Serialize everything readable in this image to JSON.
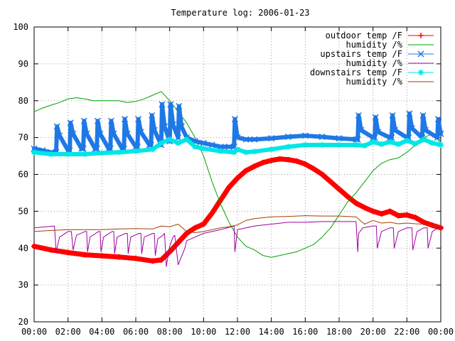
{
  "chart_data": {
    "type": "line",
    "title": "Temperature log: 2006-01-23",
    "xlabel": "",
    "ylabel": "",
    "x_ticks": [
      "00:00",
      "02:00",
      "04:00",
      "06:00",
      "08:00",
      "10:00",
      "12:00",
      "14:00",
      "16:00",
      "18:00",
      "20:00",
      "22:00",
      "00:00"
    ],
    "xlim": [
      0,
      24
    ],
    "ylim": [
      20,
      100
    ],
    "y_ticks": [
      "20",
      "30",
      "40",
      "50",
      "60",
      "70",
      "80",
      "90",
      "100"
    ],
    "grid": true,
    "legend_position": "top-right",
    "series": [
      {
        "name": "outdoor temp /F",
        "color": "#ff0000",
        "marker": "plus",
        "x": [
          0,
          1,
          2,
          3,
          4,
          5,
          6,
          7,
          7.5,
          8,
          8.5,
          9,
          9.5,
          10,
          10.5,
          11,
          11.5,
          12,
          12.5,
          13,
          13.5,
          14,
          14.5,
          15,
          15.5,
          16,
          16.5,
          17,
          17.5,
          18,
          18.5,
          19,
          19.5,
          20,
          20.5,
          21,
          21.5,
          22,
          22.5,
          23,
          23.5,
          24
        ],
        "y": [
          40.5,
          39.5,
          38.8,
          38.2,
          37.9,
          37.6,
          37.2,
          36.5,
          36.8,
          39,
          41.5,
          44,
          45.5,
          46.5,
          49.5,
          53,
          56.5,
          59,
          61,
          62.2,
          63.2,
          63.8,
          64.2,
          64,
          63.6,
          62.8,
          61.5,
          60,
          58,
          56,
          54,
          52.2,
          51,
          50,
          49.3,
          50,
          48.8,
          49,
          48.3,
          47,
          46.2,
          45.5
        ]
      },
      {
        "name": "humidity /%",
        "color": "#00a000",
        "marker": "none",
        "x": [
          0,
          0.5,
          1,
          1.5,
          2,
          2.5,
          3,
          3.5,
          4,
          4.5,
          5,
          5.5,
          6,
          6.5,
          7,
          7.5,
          8,
          8.5,
          9,
          9.5,
          10,
          10.5,
          11,
          11.5,
          12,
          12.5,
          13,
          13.5,
          14,
          14.5,
          15,
          15.5,
          16,
          16.5,
          17,
          17.5,
          18,
          18.5,
          19,
          19.5,
          20,
          20.5,
          21,
          21.5,
          22,
          22.5,
          23,
          23.5,
          24
        ],
        "y": [
          77,
          78,
          78.8,
          79.5,
          80.5,
          80.8,
          80.5,
          80,
          80,
          80,
          80,
          79.5,
          79.8,
          80.5,
          81.5,
          82.5,
          80,
          77,
          74,
          70,
          65,
          58,
          52,
          47,
          43,
          40.5,
          39.5,
          38,
          37.5,
          38,
          38.5,
          39,
          40,
          41,
          43,
          45.5,
          49,
          52.5,
          55,
          58,
          61,
          63,
          64,
          64.5,
          66,
          68,
          70,
          71,
          68.5
        ]
      },
      {
        "name": "upstairs temp /F",
        "color": "#1e78e6",
        "marker": "x",
        "x": [
          0,
          0.5,
          1,
          1.3,
          1.35,
          1.5,
          2,
          2.1,
          2.15,
          2.3,
          2.8,
          2.9,
          2.95,
          3.1,
          3.6,
          3.7,
          3.75,
          3.9,
          4.4,
          4.5,
          4.55,
          4.7,
          5.2,
          5.3,
          5.35,
          5.5,
          6,
          6.1,
          6.15,
          6.3,
          6.8,
          6.9,
          6.95,
          7.1,
          7.5,
          7.55,
          7.7,
          8,
          8.05,
          8.2,
          8.5,
          8.55,
          8.7,
          9,
          9.5,
          10,
          10.5,
          11,
          11.5,
          11.8,
          11.85,
          12,
          12.5,
          13,
          14,
          15,
          16,
          17,
          18,
          19,
          19.1,
          19.15,
          19.3,
          20,
          20.1,
          20.15,
          20.3,
          21,
          21.1,
          21.15,
          21.3,
          22,
          22.1,
          22.15,
          22.3,
          22.9,
          22.95,
          23.1,
          23.8,
          23.85,
          24
        ],
        "y": [
          67,
          66.5,
          66,
          66,
          73,
          70.5,
          66.5,
          66.5,
          74,
          71,
          67,
          67,
          74.5,
          71,
          67,
          67,
          74.5,
          71,
          67,
          67,
          74.5,
          71,
          67,
          67,
          75,
          71,
          67.5,
          67.5,
          75,
          71.5,
          68,
          68,
          76,
          72,
          68,
          79,
          73,
          69,
          79,
          73.5,
          70,
          78.5,
          73,
          70,
          69,
          68.5,
          68,
          67.5,
          67.5,
          67.5,
          75,
          70,
          69.5,
          69.5,
          69.8,
          70.2,
          70.5,
          70.2,
          69.8,
          69.5,
          69.5,
          76,
          72,
          70,
          70,
          75.5,
          71.5,
          70,
          70,
          76,
          72,
          70,
          70,
          76.5,
          72.5,
          70,
          76,
          72,
          70,
          75,
          71
        ]
      },
      {
        "name": "humidity /%",
        "color": "#a000a0",
        "marker": "none",
        "x": [
          0,
          1.2,
          1.3,
          1.5,
          2,
          2.2,
          2.3,
          2.5,
          3,
          3.1,
          3.15,
          3.3,
          3.8,
          3.9,
          3.95,
          4.1,
          4.6,
          4.7,
          4.75,
          4.9,
          5.4,
          5.5,
          5.55,
          5.7,
          6.2,
          6.3,
          6.35,
          6.5,
          7,
          7.1,
          7.15,
          7.3,
          7.6,
          7.7,
          7.8,
          8,
          8.2,
          8.3,
          8.5,
          8.9,
          9,
          9.5,
          10,
          11,
          11.8,
          11.85,
          12,
          12.5,
          13,
          14,
          15,
          16,
          17,
          18,
          19,
          19.1,
          19.15,
          19.4,
          20,
          20.2,
          20.25,
          20.5,
          21,
          21.2,
          21.25,
          21.5,
          22,
          22.3,
          22.35,
          22.6,
          23,
          23.2,
          23.25,
          23.5,
          24
        ],
        "y": [
          45.5,
          46,
          39,
          43,
          44.5,
          44.5,
          39.5,
          43.5,
          44.5,
          44.5,
          39,
          43,
          44.5,
          44.5,
          39,
          43,
          44.5,
          44.5,
          38.5,
          43,
          44,
          44,
          38.5,
          43,
          44,
          44,
          38.5,
          43,
          44,
          44,
          38,
          42.5,
          43.5,
          44,
          35,
          40.5,
          43,
          43.5,
          35.5,
          40,
          42,
          43,
          44,
          45,
          46,
          39,
          45,
          45.5,
          46,
          46.5,
          47,
          47,
          47.2,
          47.2,
          47.2,
          39,
          44,
          45.5,
          46,
          46,
          40,
          44.5,
          45.5,
          45.5,
          40,
          44.5,
          45.5,
          45.5,
          39.5,
          44.5,
          45.5,
          45.5,
          40,
          44.5,
          46
        ]
      },
      {
        "name": "downstairs temp /F",
        "color": "#00e6e6",
        "marker": "star",
        "x": [
          0,
          1,
          2,
          3,
          4,
          5,
          6,
          7,
          7.5,
          8,
          8.5,
          9,
          9.5,
          10,
          11,
          11.8,
          12,
          12.5,
          13,
          14,
          15,
          16,
          17,
          18,
          19,
          19.5,
          20,
          20.5,
          21,
          21.5,
          22,
          22.5,
          23,
          23.5,
          24
        ],
        "y": [
          66,
          65.5,
          65.5,
          65.5,
          65.8,
          66,
          66.3,
          66.8,
          68.5,
          69.5,
          68.5,
          69.5,
          67.5,
          67,
          66.3,
          66,
          66.8,
          66,
          66.2,
          66.8,
          67.5,
          68,
          68,
          68,
          68,
          67.8,
          68.8,
          68.2,
          68.8,
          68.2,
          69.2,
          68.3,
          69.5,
          68.5,
          68
        ]
      },
      {
        "name": "humidity /%",
        "color": "#a04000",
        "marker": "none",
        "x": [
          0,
          1,
          2,
          3,
          4,
          5,
          6,
          7,
          7.5,
          8,
          8.5,
          9,
          9.5,
          10,
          10.5,
          11,
          11.5,
          12,
          12.5,
          13,
          14,
          15,
          16,
          17,
          18,
          19,
          19.5,
          20,
          20.5,
          21,
          21.5,
          22,
          22.5,
          23,
          23.5,
          24
        ],
        "y": [
          44.5,
          44.8,
          45,
          45,
          45,
          45.2,
          45.3,
          45.2,
          46,
          45.8,
          46.5,
          44.5,
          44.2,
          44.5,
          45,
          45.5,
          45.8,
          46.3,
          47.5,
          48,
          48.5,
          48.6,
          48.8,
          48.7,
          48.7,
          48.5,
          46.5,
          47.5,
          46.8,
          47,
          46.6,
          46.8,
          46.6,
          46.5,
          46,
          46
        ]
      }
    ]
  }
}
